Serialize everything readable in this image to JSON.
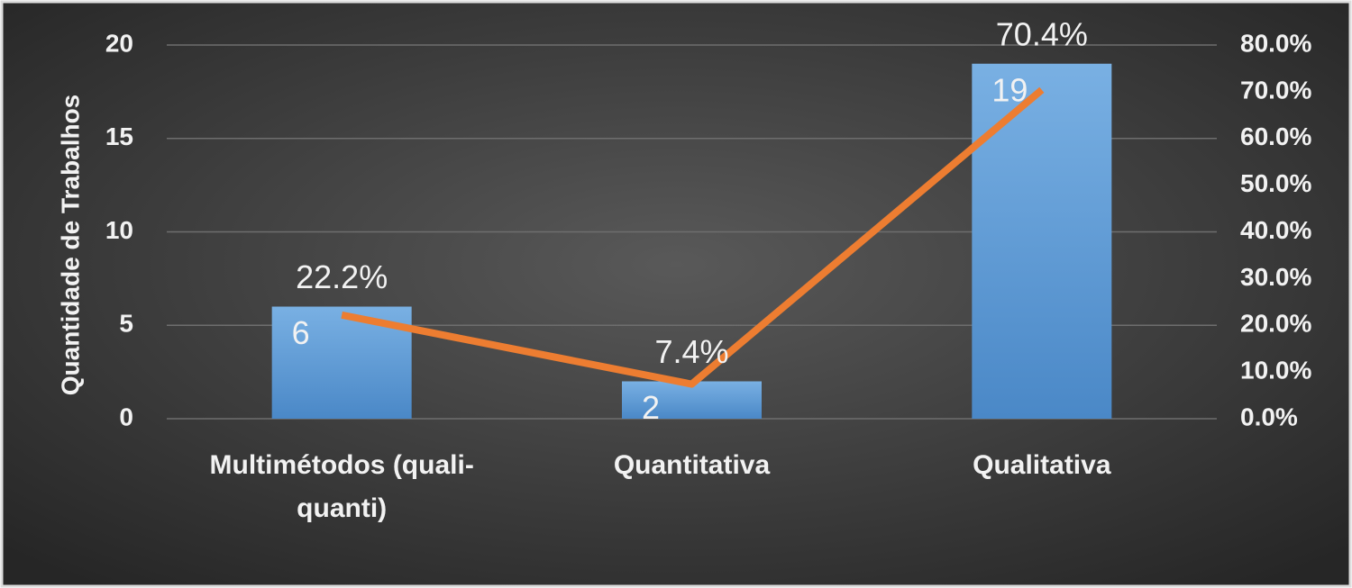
{
  "chart_data": {
    "type": "bar-line",
    "y_label": "Quantidade de Trabalhos",
    "categories": [
      "Multimétodos (quali-quanti)",
      "Quantitativa",
      "Qualitativa"
    ],
    "series": [
      {
        "type": "bar",
        "color": "#5b9bd5",
        "values": [
          6,
          2,
          19
        ]
      },
      {
        "type": "line",
        "color": "#ed7d31",
        "axis": "y2",
        "values": [
          22.2,
          7.4,
          70.4
        ],
        "value_labels": [
          "22.2%",
          "7.4%",
          "70.4%"
        ]
      }
    ],
    "ylim": [
      0,
      20
    ],
    "yticks": [
      0,
      5,
      10,
      15,
      20
    ],
    "y2lim": [
      0,
      80
    ],
    "y2ticks": [
      {
        "value": 0,
        "label": "0.0%"
      },
      {
        "value": 10,
        "label": "10.0%"
      },
      {
        "value": 20,
        "label": "20.0%"
      },
      {
        "value": 30,
        "label": "30.0%"
      },
      {
        "value": 40,
        "label": "40.0%"
      },
      {
        "value": 50,
        "label": "50.0%"
      },
      {
        "value": 60,
        "label": "60.0%"
      },
      {
        "value": 70,
        "label": "70.0%"
      },
      {
        "value": 80,
        "label": "80.0%"
      }
    ],
    "grid": true
  }
}
